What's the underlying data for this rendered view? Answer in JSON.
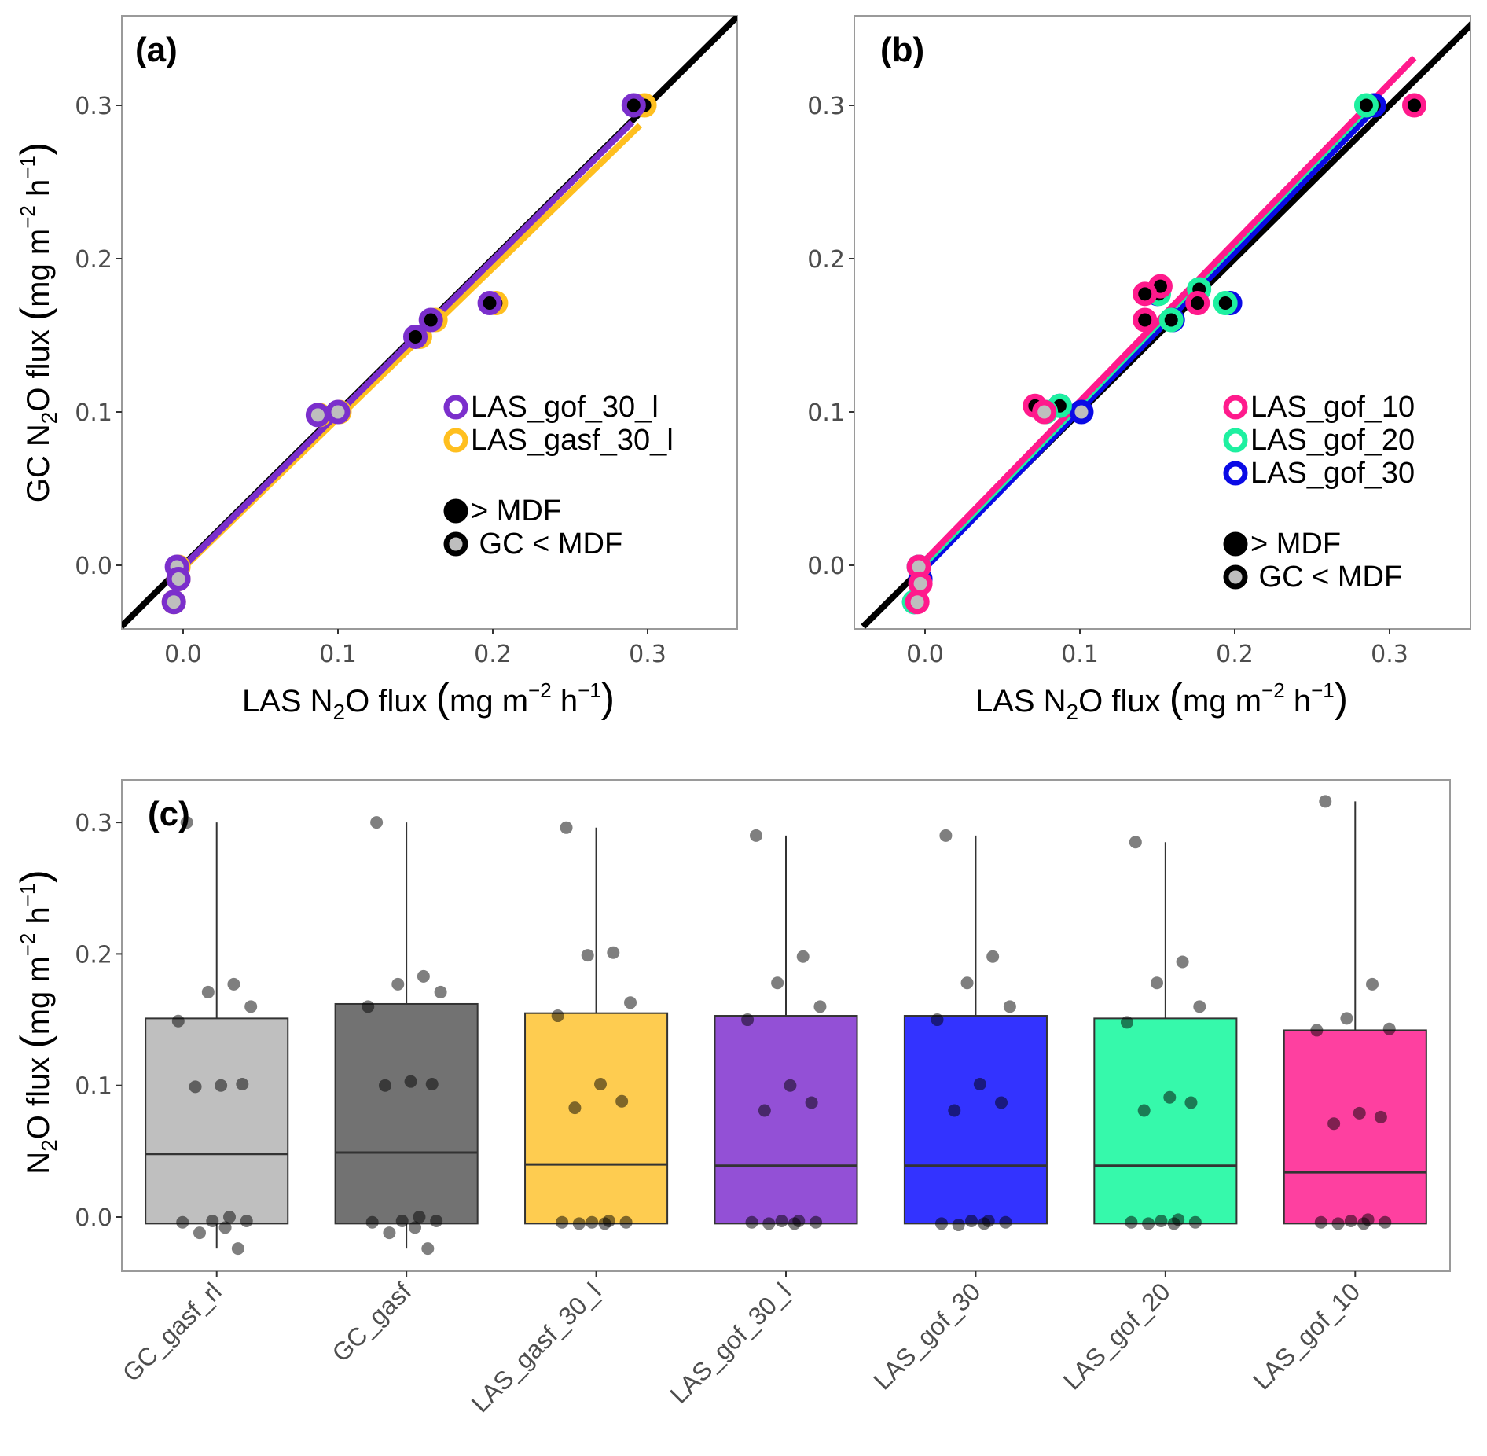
{
  "chart_data": [
    {
      "id": "a",
      "type": "scatter",
      "panel_label": "(a)",
      "xlabel": "LAS N2O flux (mg m-2 h-1)",
      "ylabel": "GC N2O flux (mg m-2 h-1)",
      "xlim": [
        -0.04,
        0.355
      ],
      "ylim": [
        -0.04,
        0.36
      ],
      "xticks": [
        "0.0",
        "0.1",
        "0.2",
        "0.3"
      ],
      "yticks": [
        "0.0",
        "0.1",
        "0.2",
        "0.3"
      ],
      "xtick_values": [
        0.0,
        0.1,
        0.2,
        0.3
      ],
      "ytick_values": [
        0.0,
        0.1,
        0.2,
        0.3
      ],
      "grid": false,
      "one_to_one_line": {
        "color": "#000000"
      },
      "series": [
        {
          "name": "LAS_gasf_30_l",
          "color": "#FFBF1F",
          "fit": {
            "x": [
              -0.004,
              0.295
            ],
            "y": [
              -0.006,
              0.287
            ]
          },
          "points": [
            {
              "x": 0.298,
              "y": 0.3,
              "above_mdf": true
            },
            {
              "x": 0.202,
              "y": 0.171,
              "above_mdf": true
            },
            {
              "x": 0.163,
              "y": 0.16,
              "above_mdf": true
            },
            {
              "x": 0.153,
              "y": 0.149,
              "above_mdf": true
            },
            {
              "x": 0.101,
              "y": 0.1,
              "above_mdf": false
            },
            {
              "x": 0.088,
              "y": 0.098,
              "above_mdf": false
            },
            {
              "x": -0.003,
              "y": -0.001,
              "above_mdf": false
            },
            {
              "x": -0.003,
              "y": -0.009,
              "above_mdf": false
            },
            {
              "x": -0.006,
              "y": -0.024,
              "above_mdf": false
            }
          ]
        },
        {
          "name": "LAS_gof_30_l",
          "color": "#7B2FCC",
          "fit": {
            "x": [
              -0.004,
              0.29
            ],
            "y": [
              -0.005,
              0.289
            ]
          },
          "points": [
            {
              "x": 0.291,
              "y": 0.3,
              "above_mdf": true
            },
            {
              "x": 0.198,
              "y": 0.171,
              "above_mdf": true
            },
            {
              "x": 0.16,
              "y": 0.16,
              "above_mdf": true
            },
            {
              "x": 0.15,
              "y": 0.149,
              "above_mdf": true
            },
            {
              "x": 0.1,
              "y": 0.1,
              "above_mdf": false
            },
            {
              "x": 0.087,
              "y": 0.098,
              "above_mdf": false
            },
            {
              "x": -0.004,
              "y": -0.001,
              "above_mdf": false
            },
            {
              "x": -0.003,
              "y": -0.009,
              "above_mdf": false
            },
            {
              "x": -0.006,
              "y": -0.024,
              "above_mdf": false
            }
          ]
        }
      ],
      "legend": {
        "position": "bottom-right",
        "entries": [
          {
            "label": "LAS_gof_30_l",
            "color": "#7B2FCC"
          },
          {
            "label": "LAS_gasf_30_l",
            "color": "#FFBF1F"
          }
        ],
        "fill_entries": [
          {
            "label": "> MDF",
            "fill": "#000000"
          },
          {
            "label": " GC < MDF",
            "fill": "#BEBEBE"
          }
        ]
      }
    },
    {
      "id": "b",
      "type": "scatter",
      "panel_label": "(b)",
      "xlabel": "LAS N2O flux (mg m-2 h-1)",
      "ylabel": "",
      "xlim": [
        -0.04,
        0.355
      ],
      "ylim": [
        -0.04,
        0.36
      ],
      "xticks": [
        "0.0",
        "0.1",
        "0.2",
        "0.3"
      ],
      "yticks": [
        "0.0",
        "0.1",
        "0.2",
        "0.3"
      ],
      "xtick_values": [
        0.0,
        0.1,
        0.2,
        0.3
      ],
      "ytick_values": [
        0.0,
        0.1,
        0.2,
        0.3
      ],
      "grid": false,
      "one_to_one_line": {
        "color": "#000000"
      },
      "series": [
        {
          "name": "LAS_gof_30",
          "color": "#0A0AE6",
          "fit": {
            "x": [
              -0.004,
              0.29
            ],
            "y": [
              -0.006,
              0.297
            ]
          },
          "points": [
            {
              "x": 0.29,
              "y": 0.3,
              "above_mdf": true
            },
            {
              "x": 0.197,
              "y": 0.171,
              "above_mdf": true
            },
            {
              "x": 0.16,
              "y": 0.16,
              "above_mdf": true
            },
            {
              "x": 0.15,
              "y": 0.177,
              "above_mdf": true
            },
            {
              "x": 0.101,
              "y": 0.1,
              "above_mdf": false
            },
            {
              "x": 0.087,
              "y": 0.104,
              "above_mdf": true
            },
            {
              "x": -0.004,
              "y": -0.001,
              "above_mdf": false
            },
            {
              "x": -0.003,
              "y": -0.009,
              "above_mdf": false
            },
            {
              "x": -0.007,
              "y": -0.024,
              "above_mdf": false
            }
          ]
        },
        {
          "name": "LAS_gof_20",
          "color": "#1EF0A0",
          "fit": {
            "x": [
              -0.004,
              0.286
            ],
            "y": [
              -0.003,
              0.298
            ]
          },
          "points": [
            {
              "x": 0.285,
              "y": 0.3,
              "above_mdf": true
            },
            {
              "x": 0.194,
              "y": 0.171,
              "above_mdf": true
            },
            {
              "x": 0.177,
              "y": 0.18,
              "above_mdf": true
            },
            {
              "x": 0.151,
              "y": 0.177,
              "above_mdf": true
            },
            {
              "x": 0.159,
              "y": 0.16,
              "above_mdf": true
            },
            {
              "x": 0.087,
              "y": 0.104,
              "above_mdf": true
            },
            {
              "x": 0.078,
              "y": 0.1,
              "above_mdf": false
            },
            {
              "x": -0.004,
              "y": -0.001,
              "above_mdf": false
            },
            {
              "x": -0.007,
              "y": -0.024,
              "above_mdf": false
            }
          ]
        },
        {
          "name": "LAS_gof_10",
          "color": "#FF1A8C",
          "fit": {
            "x": [
              -0.004,
              0.316
            ],
            "y": [
              -0.001,
              0.331
            ]
          },
          "points": [
            {
              "x": 0.316,
              "y": 0.3,
              "above_mdf": true
            },
            {
              "x": 0.176,
              "y": 0.171,
              "above_mdf": true
            },
            {
              "x": 0.152,
              "y": 0.182,
              "above_mdf": true
            },
            {
              "x": 0.142,
              "y": 0.177,
              "above_mdf": true
            },
            {
              "x": 0.142,
              "y": 0.16,
              "above_mdf": true
            },
            {
              "x": 0.071,
              "y": 0.104,
              "above_mdf": true
            },
            {
              "x": 0.077,
              "y": 0.1,
              "above_mdf": false
            },
            {
              "x": -0.004,
              "y": -0.001,
              "above_mdf": false
            },
            {
              "x": -0.003,
              "y": -0.012,
              "above_mdf": false
            },
            {
              "x": -0.005,
              "y": -0.024,
              "above_mdf": false
            }
          ]
        }
      ],
      "legend": {
        "position": "bottom-right",
        "entries": [
          {
            "label": "LAS_gof_10",
            "color": "#FF1A8C"
          },
          {
            "label": "LAS_gof_20",
            "color": "#1EF0A0"
          },
          {
            "label": "LAS_gof_30",
            "color": "#0A0AE6"
          }
        ],
        "fill_entries": [
          {
            "label": "> MDF",
            "fill": "#000000"
          },
          {
            "label": " GC < MDF",
            "fill": "#BEBEBE"
          }
        ]
      }
    },
    {
      "id": "c",
      "type": "box",
      "panel_label": "(c)",
      "xlabel": "",
      "ylabel": "N2O flux (mg m-2 h-1)",
      "ylim": [
        -0.04,
        0.34
      ],
      "yticks": [
        "0.0",
        "0.1",
        "0.2",
        "0.3"
      ],
      "ytick_values": [
        0.0,
        0.1,
        0.2,
        0.3
      ],
      "grid": false,
      "categories": [
        "GC_gasf_rl",
        "GC_gasf",
        "LAS_gasf_30_l",
        "LAS_gof_30_l",
        "LAS_gof_30",
        "LAS_gof_20",
        "LAS_gof_10"
      ],
      "boxes": [
        {
          "category": "GC_gasf_rl",
          "color": "#BFBFBF",
          "min": -0.024,
          "q1": -0.005,
          "median": 0.048,
          "q3": 0.151,
          "max": 0.3,
          "points": [
            0.3,
            0.177,
            0.171,
            0.16,
            0.149,
            0.1,
            0.101,
            0.099,
            0.0,
            -0.003,
            -0.003,
            -0.004,
            -0.008,
            -0.012,
            -0.024
          ]
        },
        {
          "category": "GC_gasf",
          "color": "#727272",
          "min": -0.024,
          "q1": -0.005,
          "median": 0.049,
          "q3": 0.162,
          "max": 0.3,
          "points": [
            0.3,
            0.183,
            0.177,
            0.171,
            0.16,
            0.103,
            0.101,
            0.1,
            0.0,
            -0.003,
            -0.003,
            -0.004,
            -0.008,
            -0.012,
            -0.024
          ]
        },
        {
          "category": "LAS_gasf_30_l",
          "color": "#FECC50",
          "min": -0.005,
          "q1": -0.005,
          "median": 0.04,
          "q3": 0.155,
          "max": 0.296,
          "points": [
            0.296,
            0.201,
            0.199,
            0.163,
            0.153,
            0.101,
            0.088,
            0.083,
            -0.003,
            -0.004,
            -0.004,
            -0.004,
            -0.005,
            -0.005
          ]
        },
        {
          "category": "LAS_gof_30_l",
          "color": "#9350D6",
          "min": -0.005,
          "q1": -0.005,
          "median": 0.039,
          "q3": 0.153,
          "max": 0.29,
          "points": [
            0.29,
            0.198,
            0.178,
            0.16,
            0.15,
            0.1,
            0.087,
            0.081,
            -0.003,
            -0.003,
            -0.004,
            -0.004,
            -0.005,
            -0.005
          ]
        },
        {
          "category": "LAS_gof_30",
          "color": "#3333FF",
          "min": -0.005,
          "q1": -0.005,
          "median": 0.039,
          "q3": 0.153,
          "max": 0.29,
          "points": [
            0.29,
            0.198,
            0.178,
            0.16,
            0.15,
            0.101,
            0.087,
            0.081,
            -0.003,
            -0.003,
            -0.004,
            -0.005,
            -0.005,
            -0.006
          ]
        },
        {
          "category": "LAS_gof_20",
          "color": "#36F9AB",
          "min": -0.005,
          "q1": -0.005,
          "median": 0.039,
          "q3": 0.151,
          "max": 0.285,
          "points": [
            0.285,
            0.194,
            0.178,
            0.16,
            0.148,
            0.091,
            0.087,
            0.081,
            -0.002,
            -0.003,
            -0.004,
            -0.004,
            -0.005,
            -0.005
          ]
        },
        {
          "category": "LAS_gof_10",
          "color": "#FE40A0",
          "min": -0.005,
          "q1": -0.005,
          "median": 0.034,
          "q3": 0.142,
          "max": 0.316,
          "points": [
            0.316,
            0.177,
            0.151,
            0.143,
            0.142,
            0.079,
            0.076,
            0.071,
            -0.002,
            -0.003,
            -0.004,
            -0.004,
            -0.005,
            -0.005
          ]
        }
      ]
    }
  ]
}
